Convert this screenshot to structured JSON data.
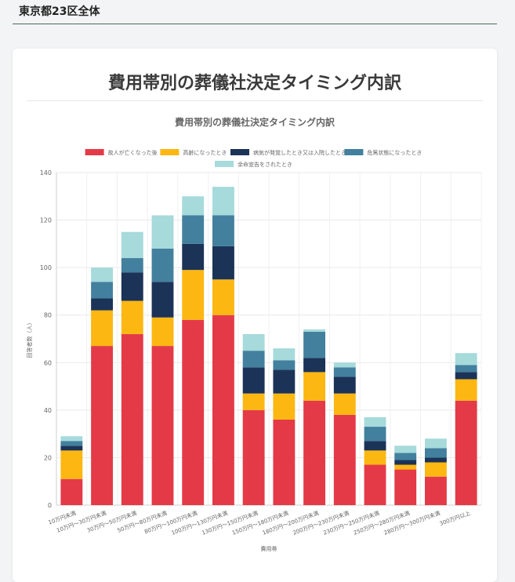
{
  "region": {
    "title": "東京都23区全体"
  },
  "card": {
    "title": "費用帯別の葬儀社決定タイミング内訳"
  },
  "chart_data": {
    "type": "bar",
    "stacked": true,
    "title": "費用帯別の葬儀社決定タイミング内訳",
    "xlabel": "費用帯",
    "ylabel": "回答者数（人）",
    "ylim": [
      0,
      140
    ],
    "yticks": [
      0,
      20,
      40,
      60,
      80,
      100,
      120,
      140
    ],
    "legend_position": "top",
    "categories": [
      "10万円未満",
      "10万円〜30万円未満",
      "30万円〜50万円未満",
      "50万円〜80万円未満",
      "80万円〜100万円未満",
      "100万円〜130万円未満",
      "130万円〜150万円未満",
      "150万円〜180万円未満",
      "180万円〜200万円未満",
      "200万円〜230万円未満",
      "230万円〜250万円未満",
      "250万円〜280万円未満",
      "280万円〜300万円未満",
      "300万円以上"
    ],
    "series": [
      {
        "name": "故人が亡くなった後",
        "color": "#e43a47",
        "values": [
          11,
          67,
          72,
          67,
          78,
          80,
          40,
          36,
          44,
          38,
          17,
          15,
          12,
          44
        ]
      },
      {
        "name": "高齢になったとき",
        "color": "#fcb712",
        "values": [
          12,
          15,
          14,
          12,
          21,
          15,
          7,
          11,
          12,
          9,
          6,
          2,
          6,
          9
        ]
      },
      {
        "name": "病気が発覚したとき又は入院したとき",
        "color": "#1c3358",
        "values": [
          2,
          5,
          12,
          15,
          11,
          14,
          11,
          10,
          6,
          7,
          4,
          2,
          2,
          3
        ]
      },
      {
        "name": "危篤状態になったとき",
        "color": "#42809e",
        "values": [
          2,
          7,
          6,
          14,
          12,
          13,
          7,
          4,
          11,
          4,
          6,
          3,
          4,
          3
        ]
      },
      {
        "name": "余命宣告をされたとき",
        "color": "#a6dadb",
        "values": [
          2,
          6,
          11,
          14,
          8,
          12,
          7,
          5,
          1,
          2,
          4,
          3,
          4,
          5
        ]
      }
    ]
  }
}
